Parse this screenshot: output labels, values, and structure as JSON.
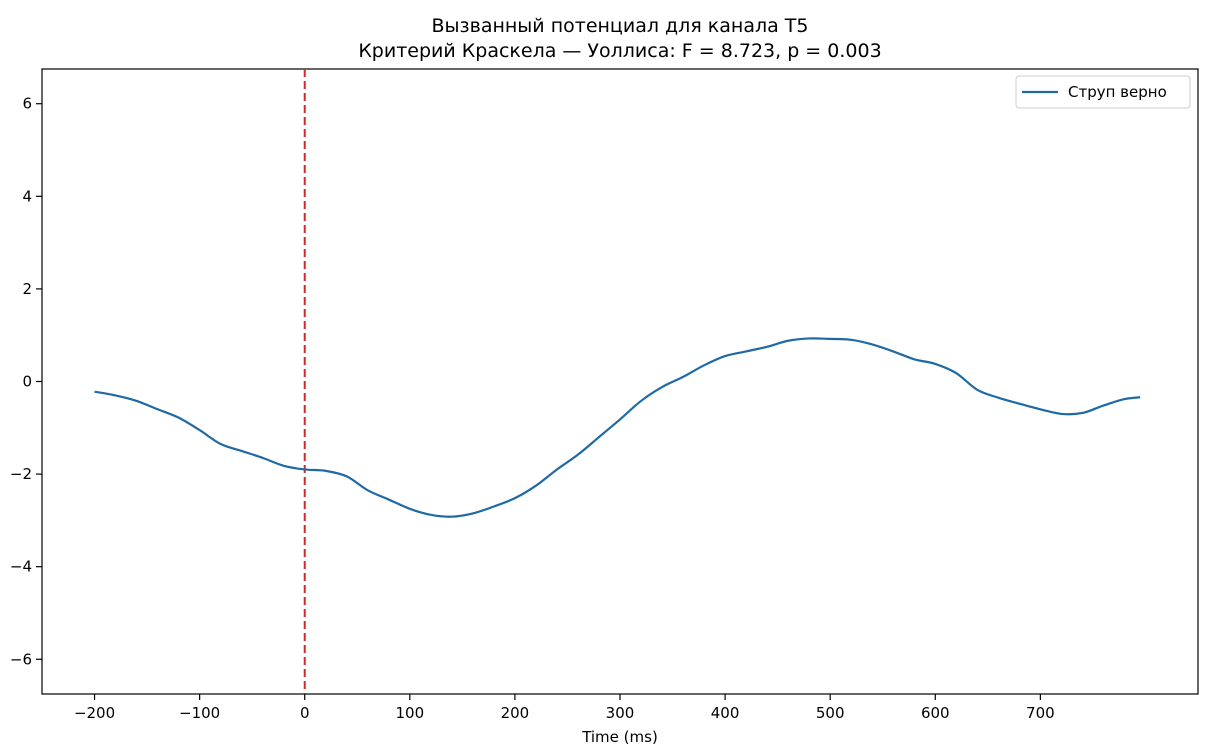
{
  "chart_data": {
    "type": "line",
    "title": "Вызванный потенциал для канала T5",
    "subtitle": "Критерий Краскела — Уоллиса: F = 8.723, p = 0.003",
    "xlabel": "Time (ms)",
    "ylabel": "",
    "xlim": [
      -250,
      850
    ],
    "ylim": [
      -6.75,
      6.75
    ],
    "xticks": [
      -200,
      -100,
      0,
      100,
      200,
      300,
      400,
      500,
      600,
      700
    ],
    "xtick_labels": [
      "−200",
      "−100",
      "0",
      "100",
      "200",
      "300",
      "400",
      "500",
      "600",
      "700"
    ],
    "yticks": [
      -6,
      -4,
      -2,
      0,
      2,
      4,
      6
    ],
    "ytick_labels": [
      "−6",
      "−4",
      "−2",
      "0",
      "2",
      "4",
      "6"
    ],
    "grid": false,
    "legend_position": "top-right",
    "vline": {
      "x": 0,
      "color": "#d62728",
      "style": "dashed"
    },
    "series": [
      {
        "name": "Струп верно",
        "color": "#1f6aa5",
        "x": [
          -200,
          -180,
          -160,
          -140,
          -120,
          -100,
          -80,
          -60,
          -40,
          -20,
          0,
          20,
          40,
          60,
          80,
          100,
          120,
          140,
          160,
          180,
          200,
          220,
          240,
          260,
          280,
          300,
          320,
          340,
          360,
          380,
          400,
          420,
          440,
          460,
          480,
          500,
          520,
          540,
          560,
          580,
          600,
          620,
          640,
          660,
          680,
          700,
          720,
          740,
          760,
          780,
          795
        ],
        "y": [
          -0.22,
          -0.3,
          -0.42,
          -0.6,
          -0.78,
          -1.05,
          -1.35,
          -1.5,
          -1.65,
          -1.82,
          -1.9,
          -1.93,
          -2.05,
          -2.35,
          -2.55,
          -2.75,
          -2.88,
          -2.92,
          -2.85,
          -2.7,
          -2.52,
          -2.25,
          -1.9,
          -1.58,
          -1.2,
          -0.82,
          -0.42,
          -0.12,
          0.1,
          0.35,
          0.55,
          0.65,
          0.75,
          0.88,
          0.93,
          0.92,
          0.9,
          0.8,
          0.65,
          0.48,
          0.38,
          0.18,
          -0.18,
          -0.35,
          -0.48,
          -0.6,
          -0.7,
          -0.68,
          -0.52,
          -0.38,
          -0.34
        ]
      }
    ]
  }
}
